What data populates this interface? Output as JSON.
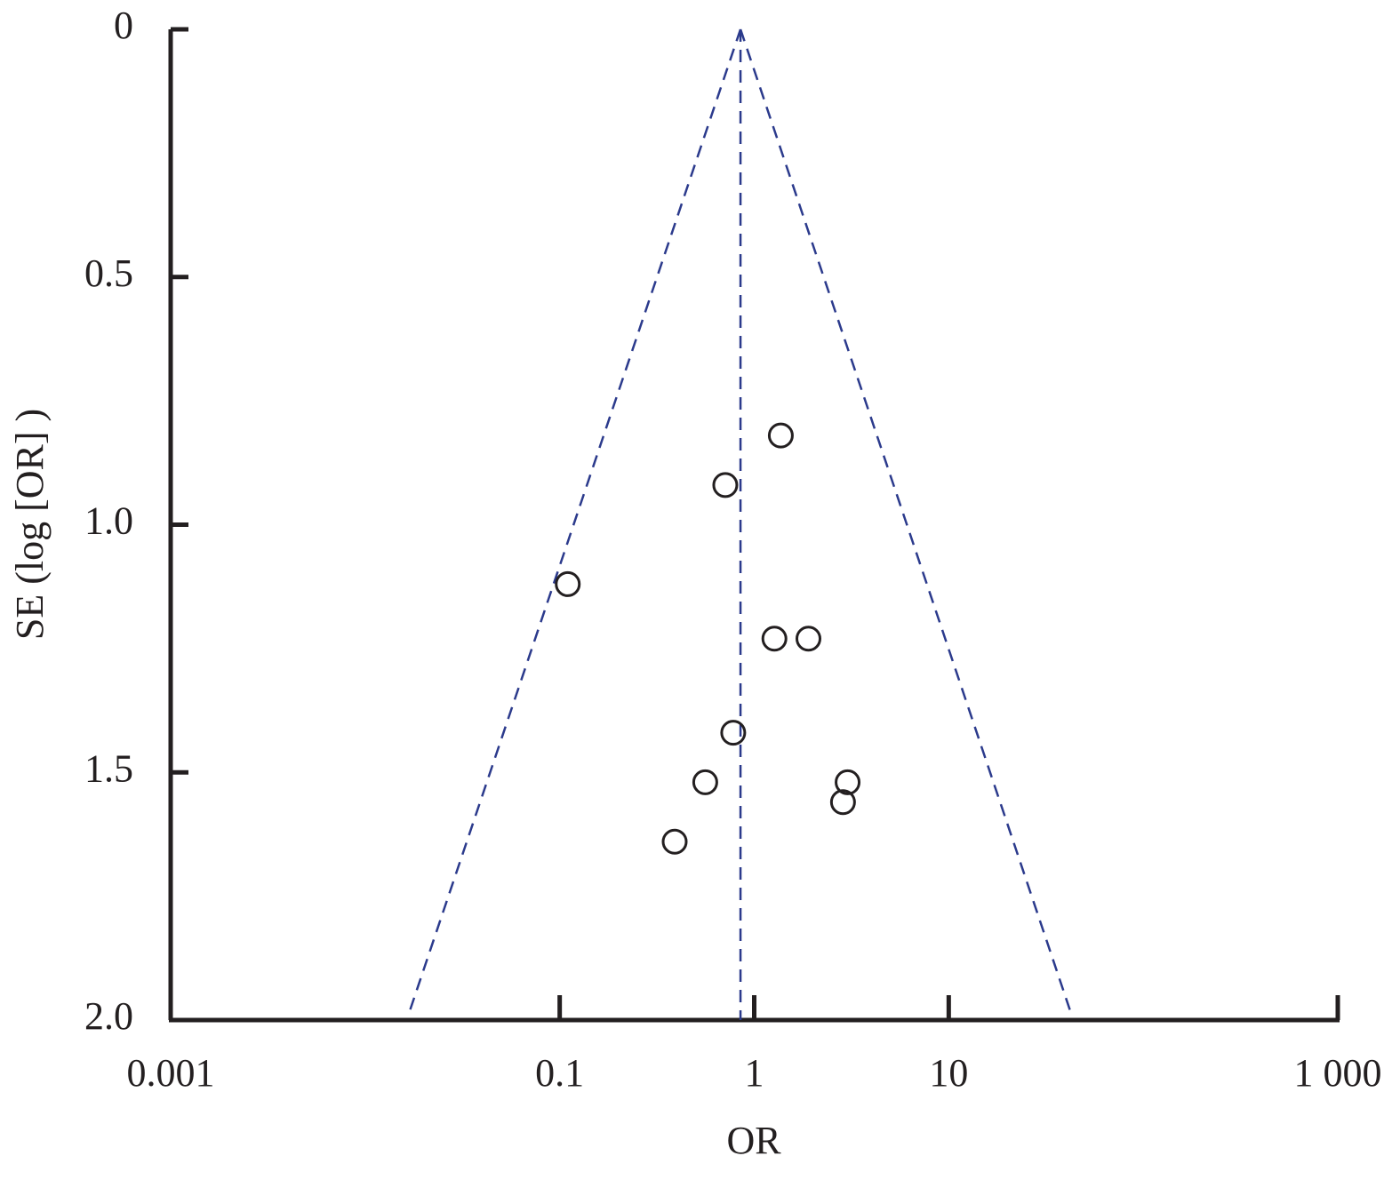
{
  "chart_data": {
    "type": "scatter",
    "xlabel": "OR",
    "ylabel": "SE (log [OR] )",
    "xscale": "log",
    "yreversed": true,
    "xlim": [
      0.001,
      1000
    ],
    "ylim": [
      0,
      2
    ],
    "xticks": [
      0.001,
      0.1,
      1,
      10,
      {
        "value": 1000,
        "label": "1 000"
      }
    ],
    "yticks": [
      0,
      0.5,
      {
        "value": 1,
        "label": "1.0"
      },
      1.5,
      {
        "value": 2,
        "label": "2.0"
      }
    ],
    "x": [
      1.37,
      0.71,
      0.11,
      1.27,
      1.9,
      0.78,
      0.56,
      3.02,
      2.86,
      0.39
    ],
    "values": [
      0.82,
      0.92,
      1.12,
      1.23,
      1.23,
      1.42,
      1.52,
      1.52,
      1.56,
      1.64
    ],
    "color": "#231f20",
    "lines": [
      {
        "x": [
          0.85,
          0.85
        ],
        "values": [
          0,
          2
        ],
        "color": "#2b3a8c"
      },
      {
        "x": [
          0.85,
          0.017
        ],
        "values": [
          0,
          1.98
        ],
        "color": "#2b3a8c"
      },
      {
        "x": [
          0.85,
          42
        ],
        "values": [
          0,
          1.98
        ],
        "color": "#2b3a8c"
      }
    ]
  }
}
